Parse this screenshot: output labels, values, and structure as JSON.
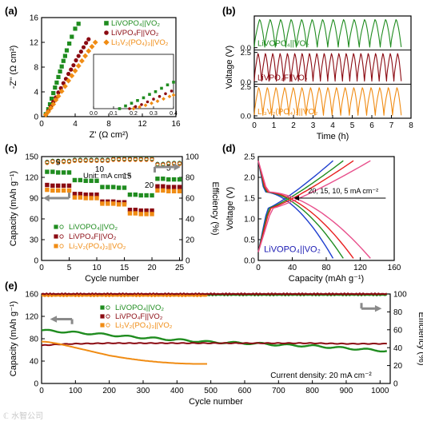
{
  "colors": {
    "green": "#1f8c1f",
    "darkred": "#8b0a12",
    "orange": "#f08c14",
    "blue": "#1f3fcf",
    "pink": "#e8508c",
    "red": "#e81e1e",
    "gray": "#8a8a8a",
    "text_blue": "#1b1bb3"
  },
  "watermark": "ℂ 水智公司",
  "chart_data": [
    {
      "id": "a",
      "panel_label": "(a)",
      "type": "scatter",
      "xlabel": "Z' (Ω cm²)",
      "ylabel": "-Z'' (Ω cm²)",
      "xlim": [
        0,
        16
      ],
      "ylim": [
        0,
        16
      ],
      "xticks": [
        0,
        4,
        8,
        12,
        16
      ],
      "yticks": [
        0,
        4,
        8,
        12,
        16
      ],
      "series": [
        {
          "name": "LiVOPO₄||VO₂",
          "color": "green",
          "x": [
            0.5,
            0.8,
            1.0,
            1.2,
            1.4,
            1.6,
            1.8,
            2.0,
            2.2,
            2.4,
            2.6,
            2.8,
            3.0,
            3.3,
            3.6,
            4.0,
            4.4
          ],
          "y": [
            0.4,
            1.2,
            2.0,
            2.9,
            3.8,
            4.7,
            5.5,
            6.4,
            7.3,
            8.1,
            9.0,
            9.8,
            10.7,
            11.8,
            12.9,
            14.2,
            15.0
          ]
        },
        {
          "name": "LiVPO₄F||VO₂",
          "color": "darkred",
          "x": [
            0.5,
            0.8,
            1.1,
            1.4,
            1.7,
            2.0,
            2.3,
            2.6,
            2.9,
            3.2,
            3.5,
            3.8,
            4.1,
            4.4,
            4.7,
            5.0,
            5.3,
            5.6
          ],
          "y": [
            0.3,
            0.9,
            1.6,
            2.4,
            3.1,
            3.9,
            4.6,
            5.4,
            6.1,
            6.9,
            7.6,
            8.3,
            9.1,
            9.8,
            10.5,
            11.2,
            11.9,
            12.5
          ]
        },
        {
          "name": "Li₃V₂(PO₄)₃||VO₂",
          "color": "orange",
          "x": [
            0.5,
            0.8,
            1.1,
            1.4,
            1.7,
            2.0,
            2.4,
            2.8,
            3.2,
            3.6,
            4.0,
            4.4,
            4.8,
            5.2,
            5.6,
            6.0,
            6.4
          ],
          "y": [
            0.3,
            0.8,
            1.4,
            2.0,
            2.7,
            3.3,
            4.1,
            4.9,
            5.8,
            6.6,
            7.4,
            8.2,
            9.0,
            9.8,
            10.6,
            11.3,
            12.0
          ]
        }
      ],
      "inset": {
        "xlim": [
          0,
          0.4
        ],
        "ylim": [
          0,
          0.4
        ],
        "xticks": [
          0.0,
          0.1,
          0.2,
          0.3,
          0.4
        ],
        "tick_labels": [
          "0.0",
          "0.1",
          "0.2",
          "0.3",
          "0.4"
        ],
        "series": [
          {
            "color": "green",
            "x": [
              0.13,
              0.16,
              0.19,
              0.22,
              0.25,
              0.28,
              0.31,
              0.34,
              0.37,
              0.4
            ],
            "y": [
              0.0,
              0.02,
              0.04,
              0.06,
              0.08,
              0.105,
              0.125,
              0.15,
              0.175,
              0.195
            ]
          },
          {
            "color": "darkred",
            "x": [
              0.18,
              0.21,
              0.24,
              0.27,
              0.3,
              0.33,
              0.36,
              0.39
            ],
            "y": [
              0.0,
              0.015,
              0.03,
              0.05,
              0.07,
              0.09,
              0.11,
              0.13
            ]
          },
          {
            "color": "orange",
            "x": [
              0.2,
              0.23,
              0.26,
              0.29,
              0.32,
              0.35,
              0.38,
              0.4
            ],
            "y": [
              0.0,
              0.012,
              0.025,
              0.04,
              0.055,
              0.072,
              0.09,
              0.1
            ]
          }
        ]
      }
    },
    {
      "id": "b",
      "panel_label": "(b)",
      "type": "line",
      "xlabel": "Time (h)",
      "ylabel": "Voltage (V)",
      "xlim": [
        0,
        8
      ],
      "xticks": [
        0,
        1,
        2,
        3,
        4,
        5,
        6,
        7,
        8
      ],
      "yticks": [
        0.0,
        2.5
      ],
      "ytick_labels": [
        "0.0",
        "2.5",
        "0.0",
        "2.5",
        "0.0"
      ],
      "vmax": 2.4,
      "strips": [
        {
          "name": "LiVOPO₄||VO₂",
          "color": "green",
          "cycles": 14,
          "tmax": 7.5
        },
        {
          "name": "LiVPO₄F||VO₂",
          "color": "darkred",
          "cycles": 20,
          "tmax": 7.5
        },
        {
          "name": "Li₃V₂(PO₄)₃||VO₂",
          "color": "orange",
          "cycles": 17,
          "tmax": 7.5
        }
      ]
    },
    {
      "id": "c",
      "panel_label": "(c)",
      "type": "scatter",
      "xlabel": "Cycle number",
      "ylabel": "Capacity (mAh g⁻¹)",
      "y2label": "Efficiency (%)",
      "xlim": [
        0,
        25
      ],
      "ylim": [
        0,
        150
      ],
      "y2lim": [
        0,
        100
      ],
      "xticks": [
        0,
        5,
        10,
        15,
        20,
        25
      ],
      "yticks": [
        0,
        30,
        60,
        90,
        120,
        150
      ],
      "y2ticks": [
        0,
        20,
        40,
        60,
        80,
        100
      ],
      "unit_note": "Unit: mA cm⁻²",
      "rate_labels": [
        "5",
        "10",
        "15",
        "20",
        "5"
      ],
      "x": [
        1,
        2,
        3,
        4,
        5,
        6,
        7,
        8,
        9,
        10,
        11,
        12,
        13,
        14,
        15,
        16,
        17,
        18,
        19,
        20,
        21,
        22,
        23,
        24,
        25
      ],
      "series": [
        {
          "name": "LiVOPO₄||VO₂",
          "color": "green",
          "values": [
            128,
            128,
            127,
            127,
            127,
            116,
            116,
            115,
            115,
            115,
            106,
            106,
            106,
            105,
            105,
            95,
            95,
            94,
            94,
            94,
            118,
            118,
            117,
            117,
            117
          ]
        },
        {
          "name": "LiVPO₄F||VO₂",
          "color": "darkred",
          "values": [
            109,
            108,
            108,
            108,
            108,
            96,
            96,
            95,
            95,
            95,
            85,
            85,
            85,
            84,
            84,
            73,
            73,
            72,
            72,
            72,
            107,
            107,
            106,
            106,
            106
          ]
        },
        {
          "name": "Li₃V₂(PO₄)₃||VO₂",
          "color": "orange",
          "values": [
            102,
            101,
            101,
            101,
            101,
            91,
            91,
            90,
            90,
            90,
            82,
            82,
            82,
            81,
            81,
            68,
            68,
            67,
            67,
            67,
            101,
            101,
            100,
            100,
            100
          ]
        }
      ],
      "efficiency": [
        95,
        96,
        96,
        96,
        96,
        97,
        97,
        97,
        97,
        97,
        97,
        97,
        98,
        98,
        98,
        98,
        98,
        98,
        98,
        98,
        93,
        93,
        94,
        94,
        94
      ]
    },
    {
      "id": "d",
      "panel_label": "(d)",
      "type": "line",
      "xlabel": "Capacity (mAh g⁻¹)",
      "ylabel": "Voltage (V)",
      "xlim": [
        0,
        160
      ],
      "ylim": [
        0.0,
        2.5
      ],
      "xticks": [
        0,
        40,
        80,
        120,
        160
      ],
      "yticks": [
        0.0,
        0.5,
        1.0,
        1.5,
        2.0,
        2.5
      ],
      "annotation": "20, 15, 10, 5 mA cm⁻²",
      "device_label": "LiVOPO₄||VO₂",
      "curves": [
        {
          "current": "20",
          "color": "blue",
          "qmax": 88
        },
        {
          "current": "15",
          "color": "green",
          "qmax": 100
        },
        {
          "current": "10",
          "color": "red",
          "qmax": 112
        },
        {
          "current": "5",
          "color": "pink",
          "qmax": 132
        }
      ]
    },
    {
      "id": "e",
      "panel_label": "(e)",
      "type": "line",
      "xlabel": "Cycle number",
      "ylabel": "Capacity (mAh g⁻¹)",
      "y2label": "Efficiency (%)",
      "xlim": [
        0,
        1030
      ],
      "ylim": [
        0,
        160
      ],
      "y2lim": [
        0,
        100
      ],
      "xticks": [
        0,
        100,
        200,
        300,
        400,
        500,
        600,
        700,
        800,
        900,
        1000
      ],
      "yticks": [
        0,
        40,
        80,
        120,
        160
      ],
      "y2ticks": [
        0,
        20,
        40,
        60,
        80,
        100
      ],
      "note": "Current density: 20 mA cm⁻²",
      "series": [
        {
          "name": "LiVOPO₄||VO₂",
          "color": "green",
          "x": [
            0,
            50,
            100,
            150,
            200,
            250,
            300,
            350,
            400,
            450,
            500,
            550,
            600,
            650,
            700,
            750,
            800,
            850,
            900,
            950,
            1000,
            1020
          ],
          "values": [
            95,
            93,
            91,
            89,
            87,
            84,
            82,
            80,
            78,
            76,
            74,
            73,
            72,
            71,
            69,
            68,
            67,
            65,
            63,
            61,
            59,
            58
          ]
        },
        {
          "name": "LiVPO₄F||VO₂",
          "color": "darkred",
          "x": [
            0,
            50,
            100,
            200,
            300,
            400,
            500,
            600,
            700,
            800,
            900,
            1000,
            1020
          ],
          "values": [
            68,
            70,
            71,
            72,
            72,
            72,
            72,
            72,
            72,
            72,
            71,
            71,
            71
          ]
        },
        {
          "name": "Li₃V₂(PO₄)₃||VO₂",
          "color": "orange",
          "x": [
            0,
            20,
            50,
            100,
            150,
            200,
            250,
            300,
            350,
            400,
            450,
            490
          ],
          "values": [
            75,
            74,
            71,
            64,
            57,
            50,
            45,
            41,
            38,
            36,
            35,
            35
          ]
        }
      ],
      "efficiency_green": 99,
      "efficiency_red": 100,
      "efficiency_orange": 98
    }
  ]
}
